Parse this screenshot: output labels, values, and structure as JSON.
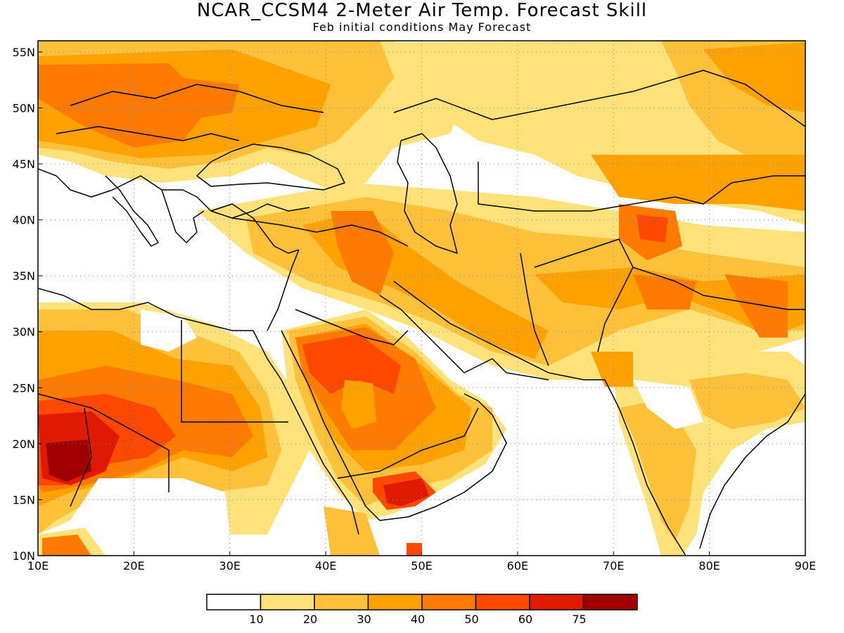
{
  "title": "NCAR_CCSM4 2-Meter Air Temp. Forecast Skill",
  "subtitle": "Feb initial conditions  May Forecast",
  "map": {
    "lon_range": [
      10,
      90
    ],
    "lat_range": [
      10,
      56
    ],
    "lon_ticks": [
      "10E",
      "20E",
      "30E",
      "40E",
      "50E",
      "60E",
      "70E",
      "80E",
      "90E"
    ],
    "lat_ticks": [
      "10N",
      "15N",
      "20N",
      "25N",
      "30N",
      "35N",
      "40N",
      "45N",
      "50N",
      "55N"
    ],
    "gridlines": "dotted"
  },
  "legend": {
    "levels": [
      "10",
      "20",
      "30",
      "40",
      "50",
      "60",
      "75"
    ],
    "colors": [
      "#ffffff",
      "#ffe27a",
      "#ffc13a",
      "#ffa200",
      "#ff7a00",
      "#ff4800",
      "#e01a00",
      "#a00000"
    ]
  }
}
